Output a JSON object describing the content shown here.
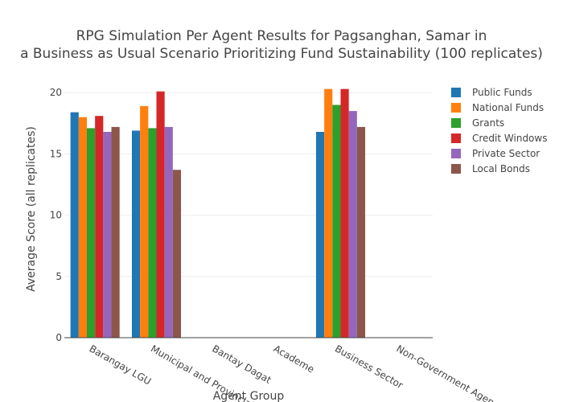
{
  "chart_data": {
    "type": "bar",
    "title_lines": [
      "RPG Simulation Per Agent Results for Pagsanghan, Samar in",
      "a Business as Usual Scenario Prioritizing Fund Sustainability (100 replicates)"
    ],
    "xlabel": "Agent Group",
    "ylabel": "Average Score (all replicates)",
    "ylim": [
      0,
      21
    ],
    "yticks": [
      0,
      5,
      10,
      15,
      20
    ],
    "grid": true,
    "legend_position": "top-right",
    "categories": [
      "Barangay LGU",
      "Municipal and Provincial",
      "Bantay Dagat",
      "Academe",
      "Business Sector",
      "Non-Government Agencies"
    ],
    "series": [
      {
        "name": "Public Funds",
        "color": "#1f77b4",
        "values": [
          18.4,
          16.9,
          0,
          0,
          16.8,
          0
        ]
      },
      {
        "name": "National Funds",
        "color": "#ff7f0e",
        "values": [
          18.0,
          18.9,
          0,
          0,
          20.3,
          0
        ]
      },
      {
        "name": "Grants",
        "color": "#2ca02c",
        "values": [
          17.1,
          17.1,
          0,
          0,
          19.0,
          0
        ]
      },
      {
        "name": "Credit Windows",
        "color": "#d62728",
        "values": [
          18.1,
          20.1,
          0,
          0,
          20.3,
          0
        ]
      },
      {
        "name": "Private Sector",
        "color": "#9467bd",
        "values": [
          16.8,
          17.2,
          0,
          0,
          18.5,
          0
        ]
      },
      {
        "name": "Local Bonds",
        "color": "#8c564b",
        "values": [
          17.2,
          13.7,
          0,
          0,
          17.2,
          0
        ]
      }
    ]
  }
}
